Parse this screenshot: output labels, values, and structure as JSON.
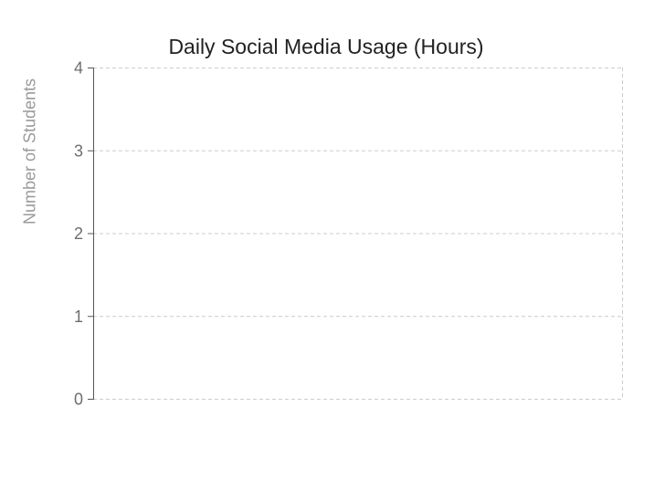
{
  "chart_data": {
    "type": "bar",
    "title": "Daily Social Media Usage (Hours)",
    "xlabel": "",
    "ylabel": "Number of Students",
    "categories": [],
    "values": [],
    "ylim": [
      0,
      4
    ],
    "yticks": [
      0,
      1,
      2,
      3,
      4
    ],
    "grid": true,
    "colors": {
      "grid": "#cccccc",
      "axis": "#555555",
      "tick_text": "#6e6e6e",
      "title": "#222222",
      "ylabel": "#9a9a9a"
    }
  }
}
